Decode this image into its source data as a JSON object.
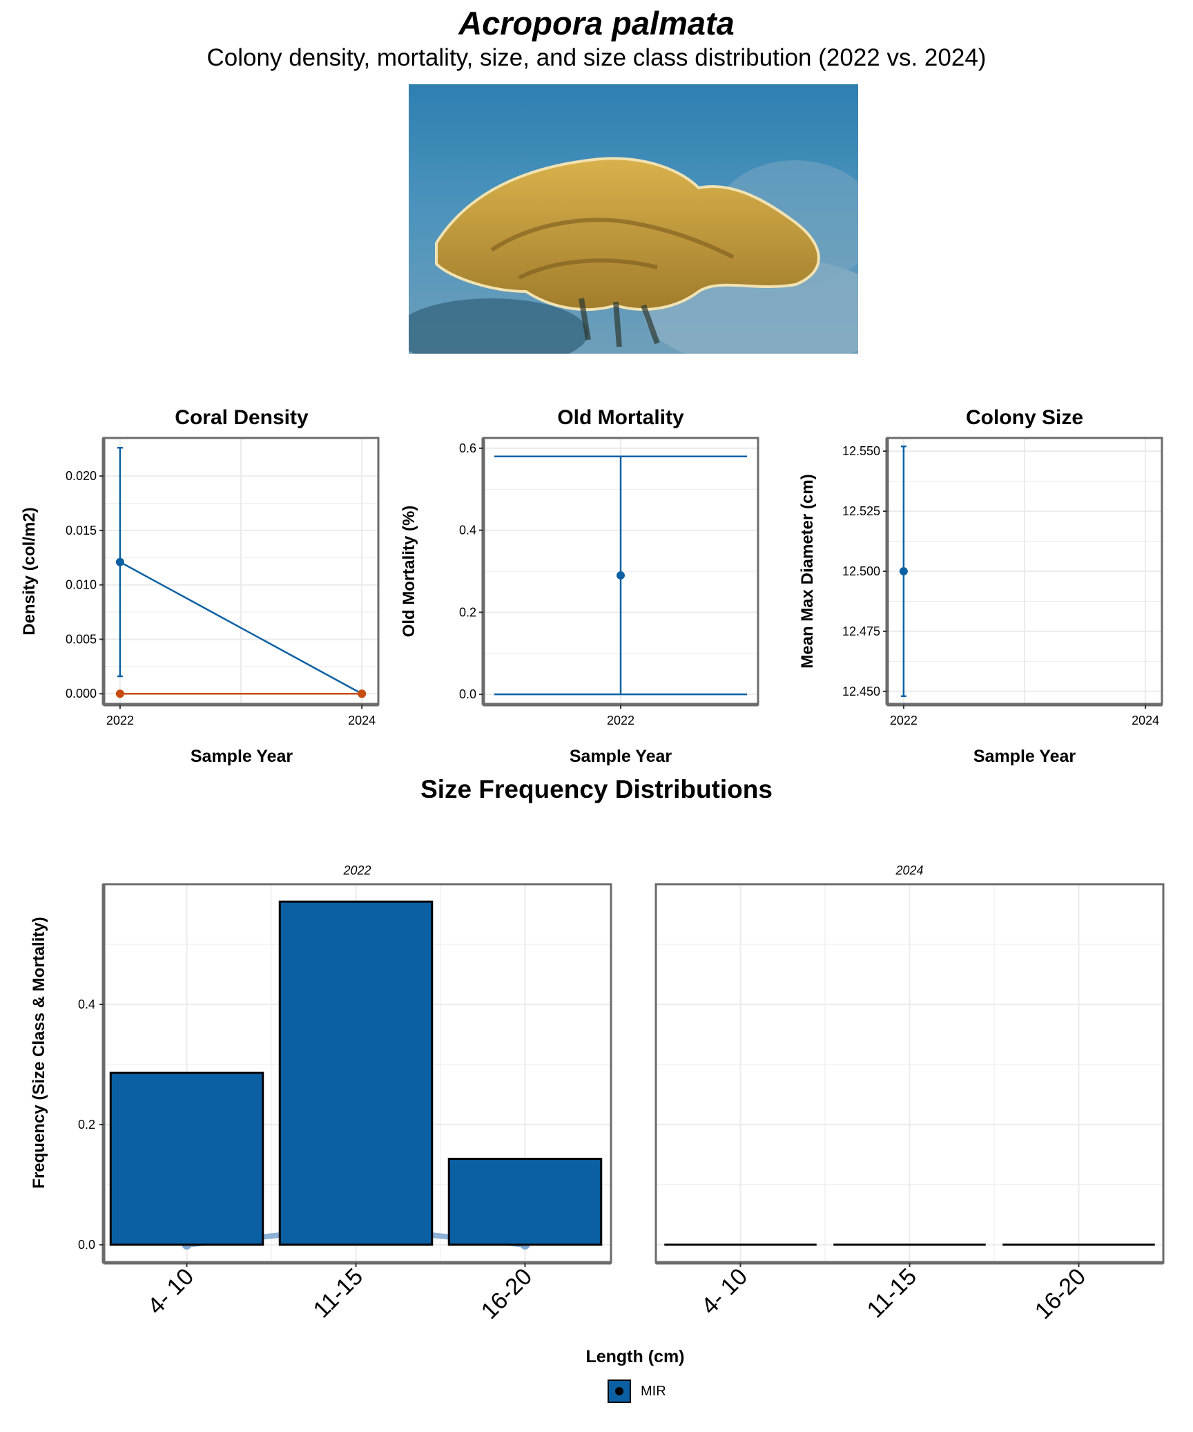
{
  "header": {
    "title": "Acropora palmata",
    "subtitle": "Colony density, mortality, size, and size class distribution (2022 vs. 2024)"
  },
  "photo": {
    "subject": "elkhorn-coral-photo"
  },
  "colors": {
    "blue": "#0b60a4",
    "orange": "#c84b0f",
    "light_blue": "#7fa9d3",
    "grid": "#ebebeb",
    "panel_border": "#6b6b6b"
  },
  "chart_data": [
    {
      "id": "density",
      "type": "line",
      "title": "Coral Density",
      "xlabel": "Sample Year",
      "ylabel": "Density (col/m2)",
      "x": [
        "2022",
        "2024"
      ],
      "ylim": [
        -0.001,
        0.0235
      ],
      "yticks": [
        "0.000",
        "0.005",
        "0.010",
        "0.015",
        "0.020"
      ],
      "series": [
        {
          "color": "blue",
          "values": [
            0.0121,
            0.0
          ],
          "error": [
            [
              0.0016,
              0.0226
            ],
            null
          ]
        },
        {
          "color": "orange",
          "values": [
            0.0,
            0.0
          ],
          "error": [
            null,
            null
          ]
        }
      ],
      "grid": true
    },
    {
      "id": "mortality",
      "type": "line",
      "title": "Old Mortality",
      "xlabel": "Sample Year",
      "ylabel": "Old Mortality (%)",
      "x": [
        "2022"
      ],
      "ylim": [
        -0.025,
        0.625
      ],
      "yticks": [
        "0.0",
        "0.2",
        "0.4",
        "0.6"
      ],
      "series": [
        {
          "color": "blue",
          "values": [
            0.29
          ],
          "error": [
            [
              0.0,
              0.58
            ]
          ]
        }
      ],
      "grid": true
    },
    {
      "id": "size",
      "type": "line",
      "title": "Colony Size",
      "xlabel": "Sample Year",
      "ylabel": "Mean Max Diameter (cm)",
      "x": [
        "2022",
        "2024"
      ],
      "ylim": [
        12.4445,
        12.5555
      ],
      "yticks": [
        "12.450",
        "12.475",
        "12.500",
        "12.525",
        "12.550"
      ],
      "series": [
        {
          "color": "blue",
          "values": [
            12.5,
            null
          ],
          "error": [
            [
              12.448,
              12.552
            ],
            null
          ]
        }
      ],
      "grid": true
    },
    {
      "id": "sizefreq",
      "type": "bar",
      "title": "Size Frequency Distributions",
      "xlabel": "Length (cm)",
      "ylabel": "Frequency (Size Class & Mortality)",
      "categories": [
        "4- 10",
        "11-15",
        "16-20"
      ],
      "ylim": [
        -0.03,
        0.6
      ],
      "yticks": [
        "0.0",
        "0.2",
        "0.4"
      ],
      "facets": [
        {
          "label": "2022",
          "values": [
            0.286,
            0.571,
            0.143
          ],
          "mortality": [
            0.0,
            0.029,
            0.0
          ]
        },
        {
          "label": "2024",
          "values": [
            0.0,
            0.0,
            0.0
          ],
          "mortality": null
        }
      ],
      "legend": {
        "label": "MIR",
        "position": "bottom"
      },
      "grid": true
    }
  ]
}
